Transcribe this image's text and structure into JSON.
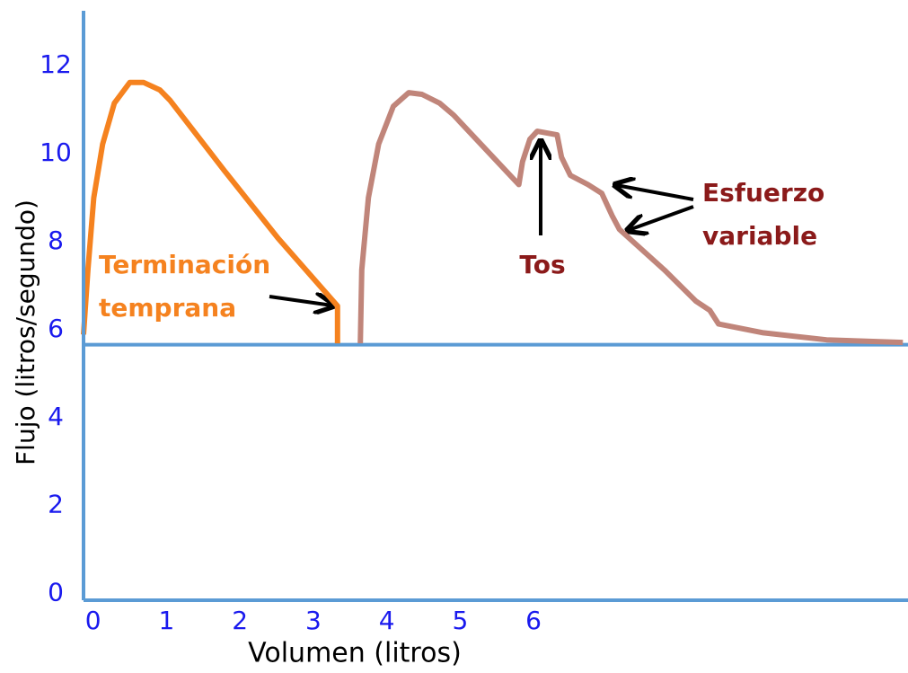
{
  "chart_data": {
    "type": "line",
    "xlabel": "Volumen (litros)",
    "ylabel": "Flujo (litros/segundo)",
    "xlim": [
      -0.13,
      11.1
    ],
    "ylim": [
      -0.15,
      13.25
    ],
    "xticks": [
      0,
      1,
      2,
      3,
      4,
      5,
      6
    ],
    "yticks": [
      0,
      2,
      4,
      6,
      8,
      10,
      12
    ],
    "axis_color": "#5b9bd5",
    "tick_label_color": "#1a1aee",
    "reference_lines": [
      {
        "y": 5.66,
        "color": "#5b9bd5"
      }
    ],
    "series": [
      {
        "color": "#f5821f",
        "x": [
          -0.13,
          -0.07,
          0.01,
          0.13,
          0.29,
          0.5,
          0.69,
          0.91,
          1.05,
          1.79,
          2.52,
          3.33,
          3.33
        ],
        "values": [
          5.89,
          7.36,
          9.0,
          10.22,
          11.15,
          11.62,
          11.62,
          11.45,
          11.21,
          9.61,
          8.08,
          6.54,
          5.69
        ]
      },
      {
        "color": "#c0857a",
        "x": [
          3.64,
          3.66,
          3.75,
          3.89,
          4.09,
          4.3,
          4.48,
          4.72,
          4.91,
          5.8,
          5.85,
          5.95,
          6.05,
          6.32,
          6.38,
          6.5,
          6.74,
          6.93,
          7.07,
          7.17,
          7.78,
          8.21,
          8.4,
          8.52,
          9.13,
          9.99,
          11.03
        ],
        "values": [
          5.69,
          7.36,
          9.0,
          10.22,
          11.08,
          11.39,
          11.35,
          11.15,
          10.88,
          9.3,
          9.82,
          10.33,
          10.51,
          10.43,
          9.92,
          9.51,
          9.3,
          9.1,
          8.59,
          8.28,
          7.36,
          6.65,
          6.44,
          6.13,
          5.93,
          5.77,
          5.71
        ]
      }
    ],
    "annotations": [
      {
        "lines": [
          "Terminación",
          "temprana"
        ],
        "color": "#f5821f"
      },
      {
        "lines": [
          "Tos"
        ],
        "color": "#8b1a1a"
      },
      {
        "lines": [
          "Esfuerzo",
          "variable"
        ],
        "color": "#8b1a1a"
      }
    ]
  }
}
